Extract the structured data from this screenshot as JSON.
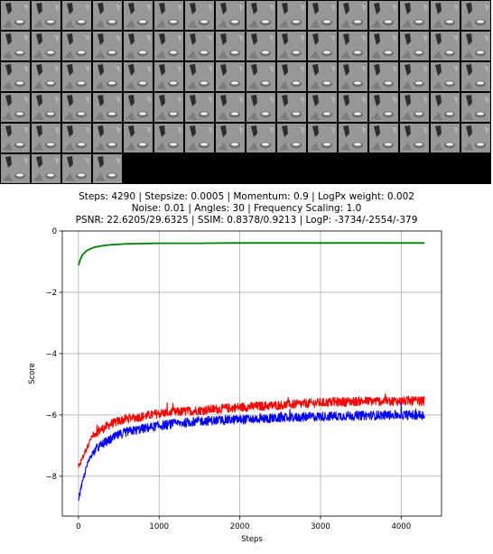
{
  "figure": {
    "montage": {
      "rows": 6,
      "cols": 16,
      "filled_tiles": 84
    }
  },
  "chart_data": {
    "type": "line",
    "title_lines": [
      "Steps: 4290 | Stepsize: 0.0005 | Momentum: 0.9 | LogPx weight: 0.002",
      "Noise: 0.01 | Angles: 30 | Frequency Scaling: 1.0",
      "PSNR: 22.6205/29.6325 | SSIM: 0.8378/0.9213 | LogP: -3734/-2554/-379"
    ],
    "xlabel": "Steps",
    "ylabel": "Score",
    "xlim": [
      -200,
      4500
    ],
    "ylim": [
      -9.3,
      0
    ],
    "xticks": [
      0,
      1000,
      2000,
      3000,
      4000
    ],
    "xtick_labels": [
      "0",
      "1000",
      "2000",
      "3000",
      "4000"
    ],
    "yticks": [
      0,
      -2,
      -4,
      -6,
      -8
    ],
    "ytick_labels": [
      "0",
      "−2",
      "−4",
      "−6",
      "−8"
    ],
    "grid": true,
    "series": [
      {
        "color": "#008000",
        "x": [
          0,
          20,
          50,
          100,
          150,
          200,
          300,
          400,
          600,
          800,
          1000,
          1500,
          2000,
          3000,
          4000,
          4290
        ],
        "values": [
          -1.12,
          -0.95,
          -0.78,
          -0.65,
          -0.58,
          -0.53,
          -0.48,
          -0.45,
          -0.42,
          -0.41,
          -0.4,
          -0.4,
          -0.39,
          -0.39,
          -0.39,
          -0.39
        ],
        "noise": 0
      },
      {
        "color": "#ff0000",
        "x": [
          0,
          50,
          100,
          150,
          200,
          300,
          400,
          500,
          600,
          800,
          1000,
          1500,
          2000,
          2500,
          3000,
          3500,
          4000,
          4290
        ],
        "values": [
          -7.75,
          -7.4,
          -7.1,
          -6.8,
          -6.6,
          -6.45,
          -6.3,
          -6.2,
          -6.12,
          -6.05,
          -5.95,
          -5.85,
          -5.75,
          -5.68,
          -5.6,
          -5.55,
          -5.55,
          -5.55
        ],
        "noise": 0.15
      },
      {
        "color": "#0000ff",
        "x": [
          0,
          50,
          100,
          150,
          200,
          300,
          400,
          500,
          600,
          800,
          1000,
          1500,
          2000,
          2500,
          3000,
          3500,
          4000,
          4290
        ],
        "values": [
          -8.75,
          -8.2,
          -7.7,
          -7.35,
          -7.15,
          -6.95,
          -6.8,
          -6.65,
          -6.55,
          -6.45,
          -6.35,
          -6.2,
          -6.15,
          -6.1,
          -6.05,
          -6.02,
          -6.0,
          -6.0
        ],
        "noise": 0.15
      }
    ]
  }
}
